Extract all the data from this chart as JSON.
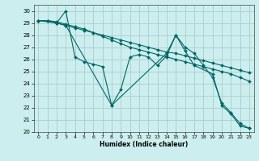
{
  "title": "",
  "xlabel": "Humidex (Indice chaleur)",
  "bg_color": "#cceeee",
  "grid_color": "#aacccc",
  "line_color": "#006666",
  "xlim": [
    -0.5,
    23.5
  ],
  "ylim": [
    20,
    30.5
  ],
  "xticks": [
    0,
    1,
    2,
    3,
    4,
    5,
    6,
    7,
    8,
    9,
    10,
    11,
    12,
    13,
    14,
    15,
    16,
    17,
    18,
    19,
    20,
    21,
    22,
    23
  ],
  "yticks": [
    20,
    21,
    22,
    23,
    24,
    25,
    26,
    27,
    28,
    29,
    30
  ],
  "lines": [
    {
      "x": [
        0,
        1,
        2,
        3,
        4,
        5,
        6,
        7,
        8,
        9,
        10,
        11,
        12,
        13,
        14,
        15,
        16,
        17,
        18,
        19,
        20,
        21,
        22,
        23
      ],
      "y": [
        29.2,
        29.2,
        29.0,
        30.0,
        26.2,
        25.8,
        25.6,
        25.4,
        22.2,
        23.5,
        26.2,
        26.4,
        26.2,
        25.5,
        26.3,
        28.0,
        27.0,
        26.5,
        25.5,
        24.5,
        22.4,
        21.6,
        20.7,
        20.3
      ]
    },
    {
      "x": [
        0,
        1,
        2,
        3,
        4,
        5,
        6,
        7,
        8,
        9,
        10,
        11,
        12,
        13,
        14,
        15,
        16,
        17,
        18,
        19,
        20,
        21,
        22,
        23
      ],
      "y": [
        29.2,
        29.2,
        29.0,
        28.8,
        28.6,
        28.4,
        28.2,
        28.0,
        27.8,
        27.6,
        27.4,
        27.2,
        27.0,
        26.8,
        26.6,
        26.5,
        26.3,
        26.1,
        25.9,
        25.7,
        25.5,
        25.3,
        25.1,
        24.9
      ]
    },
    {
      "x": [
        0,
        1,
        2,
        3,
        4,
        5,
        6,
        7,
        8,
        9,
        10,
        11,
        12,
        13,
        14,
        15,
        16,
        17,
        18,
        19,
        20,
        21,
        22,
        23
      ],
      "y": [
        29.2,
        29.2,
        29.1,
        28.9,
        28.7,
        28.5,
        28.2,
        27.9,
        27.6,
        27.3,
        27.0,
        26.8,
        26.6,
        26.4,
        26.2,
        26.0,
        25.8,
        25.6,
        25.4,
        25.2,
        25.0,
        24.8,
        24.5,
        24.2
      ]
    },
    {
      "x": [
        0,
        2,
        3,
        8,
        14,
        15,
        16,
        17,
        19,
        20,
        21,
        22,
        23
      ],
      "y": [
        29.2,
        29.0,
        28.8,
        22.2,
        26.5,
        28.0,
        26.7,
        25.5,
        24.8,
        22.2,
        21.5,
        20.5,
        20.3
      ]
    }
  ]
}
